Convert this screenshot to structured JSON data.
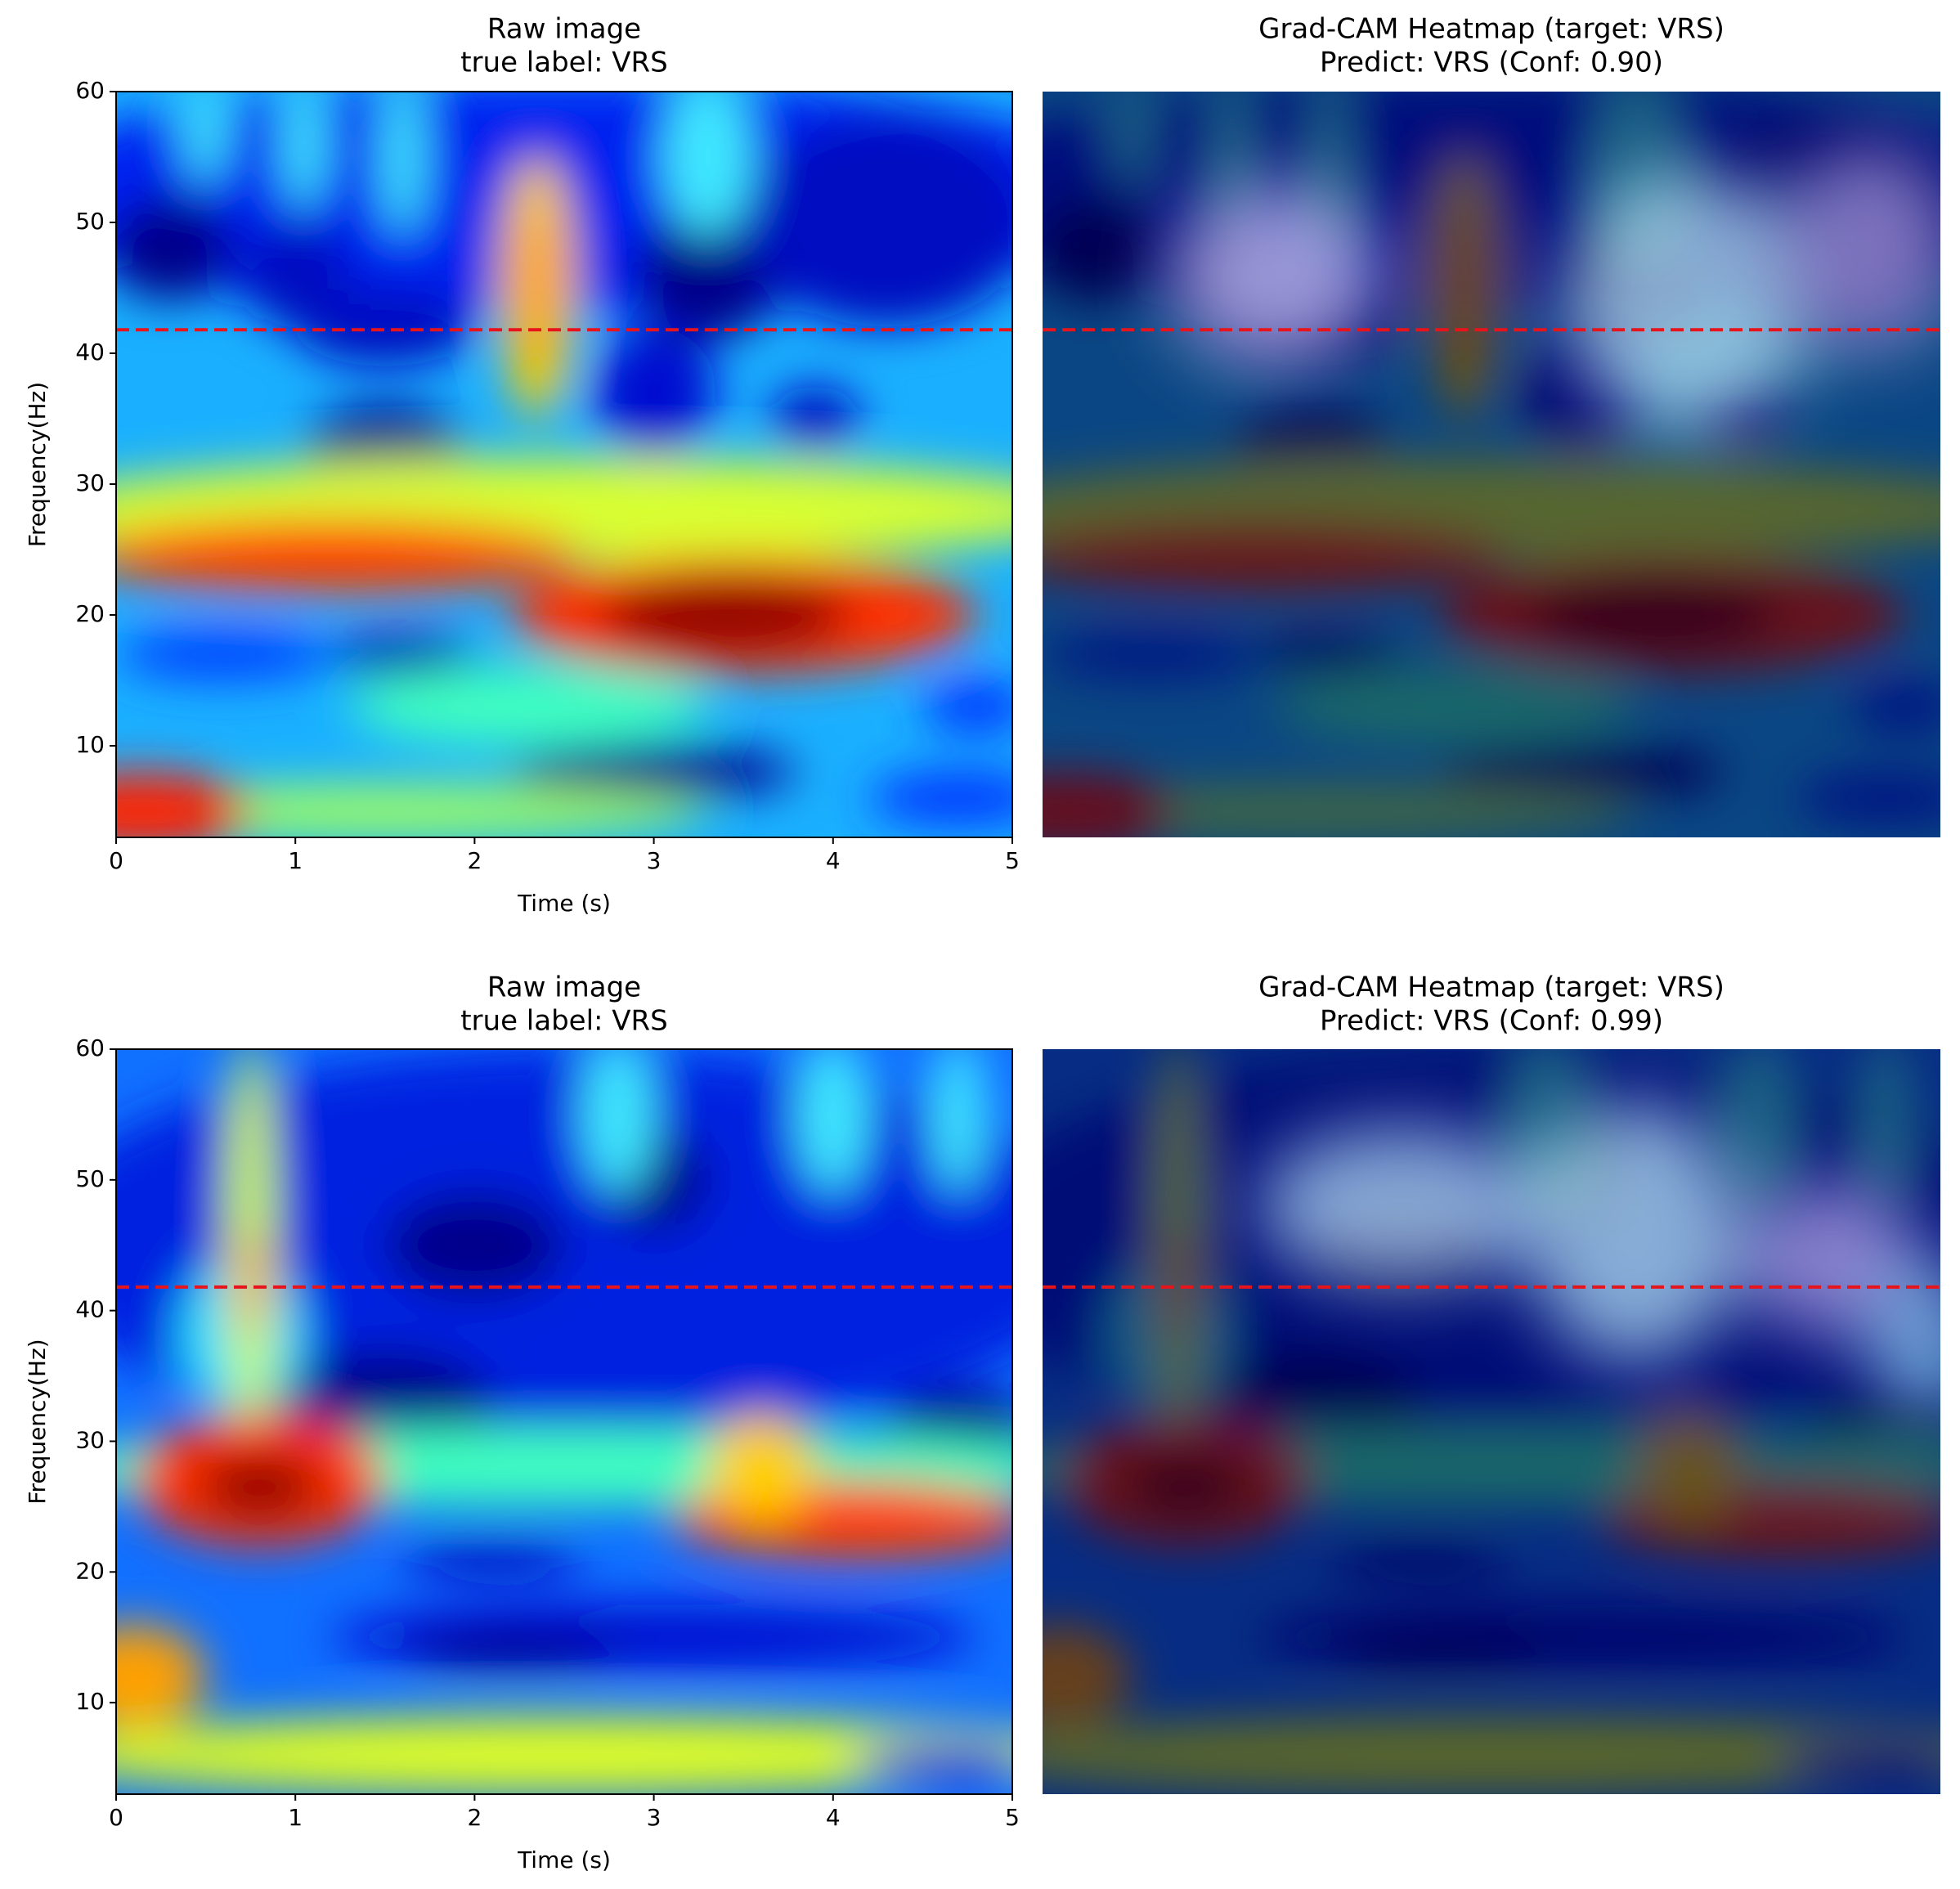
{
  "chart_data": [
    {
      "type": "heatmap",
      "title": [
        "Raw image",
        "true label: VRS"
      ],
      "xlabel": "Time (s)",
      "ylabel": "Frequency(Hz)",
      "xlim": [
        0,
        5
      ],
      "ylim": [
        3,
        60
      ],
      "xticks": [
        0,
        1,
        2,
        3,
        4,
        5
      ],
      "yticks": [
        10,
        20,
        30,
        40,
        50,
        60
      ],
      "hline": {
        "value": 41.8,
        "color": "#e8141c",
        "style": "dashed"
      }
    },
    {
      "type": "heatmap-overlay",
      "title": [
        "Grad-CAM Heatmap (target: VRS)",
        "Predict: VRS (Conf: 0.90)"
      ],
      "xlim": [
        0,
        5
      ],
      "ylim": [
        3,
        60
      ],
      "hline": {
        "value": 41.8,
        "color": "#e8141c",
        "style": "dashed"
      }
    },
    {
      "type": "heatmap",
      "title": [
        "Raw image",
        "true label: VRS"
      ],
      "xlabel": "Time (s)",
      "ylabel": "Frequency(Hz)",
      "xlim": [
        0,
        5
      ],
      "ylim": [
        3,
        60
      ],
      "xticks": [
        0,
        1,
        2,
        3,
        4,
        5
      ],
      "yticks": [
        10,
        20,
        30,
        40,
        50,
        60
      ],
      "hline": {
        "value": 41.8,
        "color": "#e8141c",
        "style": "dashed"
      }
    },
    {
      "type": "heatmap-overlay",
      "title": [
        "Grad-CAM Heatmap (target: VRS)",
        "Predict: VRS (Conf: 0.99)"
      ],
      "xlim": [
        0,
        5
      ],
      "ylim": [
        3,
        60
      ],
      "hline": {
        "value": 41.8,
        "color": "#e8141c",
        "style": "dashed"
      }
    }
  ]
}
